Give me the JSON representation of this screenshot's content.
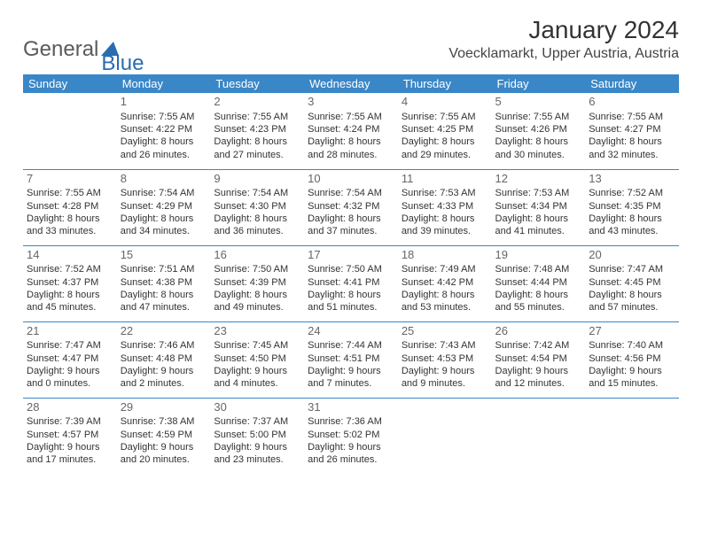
{
  "brand": {
    "part1": "General",
    "part2": "Blue"
  },
  "title": "January 2024",
  "location": "Voecklamarkt, Upper Austria, Austria",
  "colors": {
    "header_bg": "#3a87c8",
    "header_fg": "#ffffff",
    "row_border": "#3a87c8",
    "text": "#333333",
    "daynum": "#666666",
    "brand_grey": "#5a5a5a",
    "brand_blue": "#2b6cb0"
  },
  "day_headers": [
    "Sunday",
    "Monday",
    "Tuesday",
    "Wednesday",
    "Thursday",
    "Friday",
    "Saturday"
  ],
  "weeks": [
    [
      null,
      {
        "n": "1",
        "sr": "7:55 AM",
        "ss": "4:22 PM",
        "dl1": "Daylight: 8 hours",
        "dl2": "and 26 minutes."
      },
      {
        "n": "2",
        "sr": "7:55 AM",
        "ss": "4:23 PM",
        "dl1": "Daylight: 8 hours",
        "dl2": "and 27 minutes."
      },
      {
        "n": "3",
        "sr": "7:55 AM",
        "ss": "4:24 PM",
        "dl1": "Daylight: 8 hours",
        "dl2": "and 28 minutes."
      },
      {
        "n": "4",
        "sr": "7:55 AM",
        "ss": "4:25 PM",
        "dl1": "Daylight: 8 hours",
        "dl2": "and 29 minutes."
      },
      {
        "n": "5",
        "sr": "7:55 AM",
        "ss": "4:26 PM",
        "dl1": "Daylight: 8 hours",
        "dl2": "and 30 minutes."
      },
      {
        "n": "6",
        "sr": "7:55 AM",
        "ss": "4:27 PM",
        "dl1": "Daylight: 8 hours",
        "dl2": "and 32 minutes."
      }
    ],
    [
      {
        "n": "7",
        "sr": "7:55 AM",
        "ss": "4:28 PM",
        "dl1": "Daylight: 8 hours",
        "dl2": "and 33 minutes."
      },
      {
        "n": "8",
        "sr": "7:54 AM",
        "ss": "4:29 PM",
        "dl1": "Daylight: 8 hours",
        "dl2": "and 34 minutes."
      },
      {
        "n": "9",
        "sr": "7:54 AM",
        "ss": "4:30 PM",
        "dl1": "Daylight: 8 hours",
        "dl2": "and 36 minutes."
      },
      {
        "n": "10",
        "sr": "7:54 AM",
        "ss": "4:32 PM",
        "dl1": "Daylight: 8 hours",
        "dl2": "and 37 minutes."
      },
      {
        "n": "11",
        "sr": "7:53 AM",
        "ss": "4:33 PM",
        "dl1": "Daylight: 8 hours",
        "dl2": "and 39 minutes."
      },
      {
        "n": "12",
        "sr": "7:53 AM",
        "ss": "4:34 PM",
        "dl1": "Daylight: 8 hours",
        "dl2": "and 41 minutes."
      },
      {
        "n": "13",
        "sr": "7:52 AM",
        "ss": "4:35 PM",
        "dl1": "Daylight: 8 hours",
        "dl2": "and 43 minutes."
      }
    ],
    [
      {
        "n": "14",
        "sr": "7:52 AM",
        "ss": "4:37 PM",
        "dl1": "Daylight: 8 hours",
        "dl2": "and 45 minutes."
      },
      {
        "n": "15",
        "sr": "7:51 AM",
        "ss": "4:38 PM",
        "dl1": "Daylight: 8 hours",
        "dl2": "and 47 minutes."
      },
      {
        "n": "16",
        "sr": "7:50 AM",
        "ss": "4:39 PM",
        "dl1": "Daylight: 8 hours",
        "dl2": "and 49 minutes."
      },
      {
        "n": "17",
        "sr": "7:50 AM",
        "ss": "4:41 PM",
        "dl1": "Daylight: 8 hours",
        "dl2": "and 51 minutes."
      },
      {
        "n": "18",
        "sr": "7:49 AM",
        "ss": "4:42 PM",
        "dl1": "Daylight: 8 hours",
        "dl2": "and 53 minutes."
      },
      {
        "n": "19",
        "sr": "7:48 AM",
        "ss": "4:44 PM",
        "dl1": "Daylight: 8 hours",
        "dl2": "and 55 minutes."
      },
      {
        "n": "20",
        "sr": "7:47 AM",
        "ss": "4:45 PM",
        "dl1": "Daylight: 8 hours",
        "dl2": "and 57 minutes."
      }
    ],
    [
      {
        "n": "21",
        "sr": "7:47 AM",
        "ss": "4:47 PM",
        "dl1": "Daylight: 9 hours",
        "dl2": "and 0 minutes."
      },
      {
        "n": "22",
        "sr": "7:46 AM",
        "ss": "4:48 PM",
        "dl1": "Daylight: 9 hours",
        "dl2": "and 2 minutes."
      },
      {
        "n": "23",
        "sr": "7:45 AM",
        "ss": "4:50 PM",
        "dl1": "Daylight: 9 hours",
        "dl2": "and 4 minutes."
      },
      {
        "n": "24",
        "sr": "7:44 AM",
        "ss": "4:51 PM",
        "dl1": "Daylight: 9 hours",
        "dl2": "and 7 minutes."
      },
      {
        "n": "25",
        "sr": "7:43 AM",
        "ss": "4:53 PM",
        "dl1": "Daylight: 9 hours",
        "dl2": "and 9 minutes."
      },
      {
        "n": "26",
        "sr": "7:42 AM",
        "ss": "4:54 PM",
        "dl1": "Daylight: 9 hours",
        "dl2": "and 12 minutes."
      },
      {
        "n": "27",
        "sr": "7:40 AM",
        "ss": "4:56 PM",
        "dl1": "Daylight: 9 hours",
        "dl2": "and 15 minutes."
      }
    ],
    [
      {
        "n": "28",
        "sr": "7:39 AM",
        "ss": "4:57 PM",
        "dl1": "Daylight: 9 hours",
        "dl2": "and 17 minutes."
      },
      {
        "n": "29",
        "sr": "7:38 AM",
        "ss": "4:59 PM",
        "dl1": "Daylight: 9 hours",
        "dl2": "and 20 minutes."
      },
      {
        "n": "30",
        "sr": "7:37 AM",
        "ss": "5:00 PM",
        "dl1": "Daylight: 9 hours",
        "dl2": "and 23 minutes."
      },
      {
        "n": "31",
        "sr": "7:36 AM",
        "ss": "5:02 PM",
        "dl1": "Daylight: 9 hours",
        "dl2": "and 26 minutes."
      },
      null,
      null,
      null
    ]
  ]
}
